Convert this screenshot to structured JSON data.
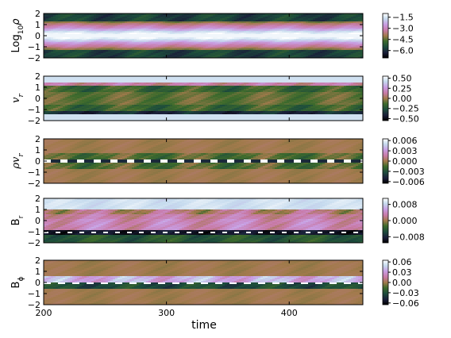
{
  "chart_data": {
    "type": "heatmap",
    "xlabel": "time",
    "xlim": [
      200,
      460
    ],
    "x_ticks": [
      "200",
      "300",
      "400"
    ],
    "y_ticks": [
      "2",
      "1",
      "0",
      "−1",
      "−2"
    ],
    "ylim": [
      -2,
      2
    ],
    "colormap": "cubehelix",
    "panels": [
      {
        "ylabel_html": "Log<sub>10</sub>ρ",
        "ylabel_main": "Log",
        "ylabel_sub": "10",
        "ylabel_sym": "ρ",
        "style": "upright",
        "structure": "density",
        "cbar_ticks": [
          "−1.5",
          "−3.0",
          "−4.5",
          "−6.0"
        ],
        "cbar_range": [
          -7.0,
          -1.0
        ]
      },
      {
        "ylabel_main": "v",
        "ylabel_sub": "r",
        "ylabel_sym": "",
        "style": "italic",
        "structure": "velocity",
        "cbar_ticks": [
          "0.50",
          "0.25",
          "0.00",
          "−0.25",
          "−0.50"
        ],
        "cbar_range": [
          -0.55,
          0.55
        ]
      },
      {
        "ylabel_main": "ρv",
        "ylabel_sub": "r",
        "ylabel_sym": "",
        "style": "italic",
        "structure": "massflux",
        "cbar_ticks": [
          "0.006",
          "0.003",
          "0.000",
          "−0.003",
          "−0.006"
        ],
        "cbar_range": [
          -0.0065,
          0.0065
        ]
      },
      {
        "ylabel_main": "B",
        "ylabel_sub": "r",
        "ylabel_sym": "",
        "style": "upright",
        "structure": "br",
        "cbar_ticks": [
          "0.008",
          "0.000",
          "−0.008"
        ],
        "cbar_range": [
          -0.011,
          0.011
        ]
      },
      {
        "ylabel_main": "B",
        "ylabel_sub": "ϕ",
        "ylabel_sym": "",
        "style": "upright",
        "structure": "bphi",
        "cbar_ticks": [
          "0.06",
          "0.03",
          "0.00",
          "−0.03",
          "−0.06"
        ],
        "cbar_range": [
          -0.065,
          0.065
        ]
      }
    ]
  }
}
